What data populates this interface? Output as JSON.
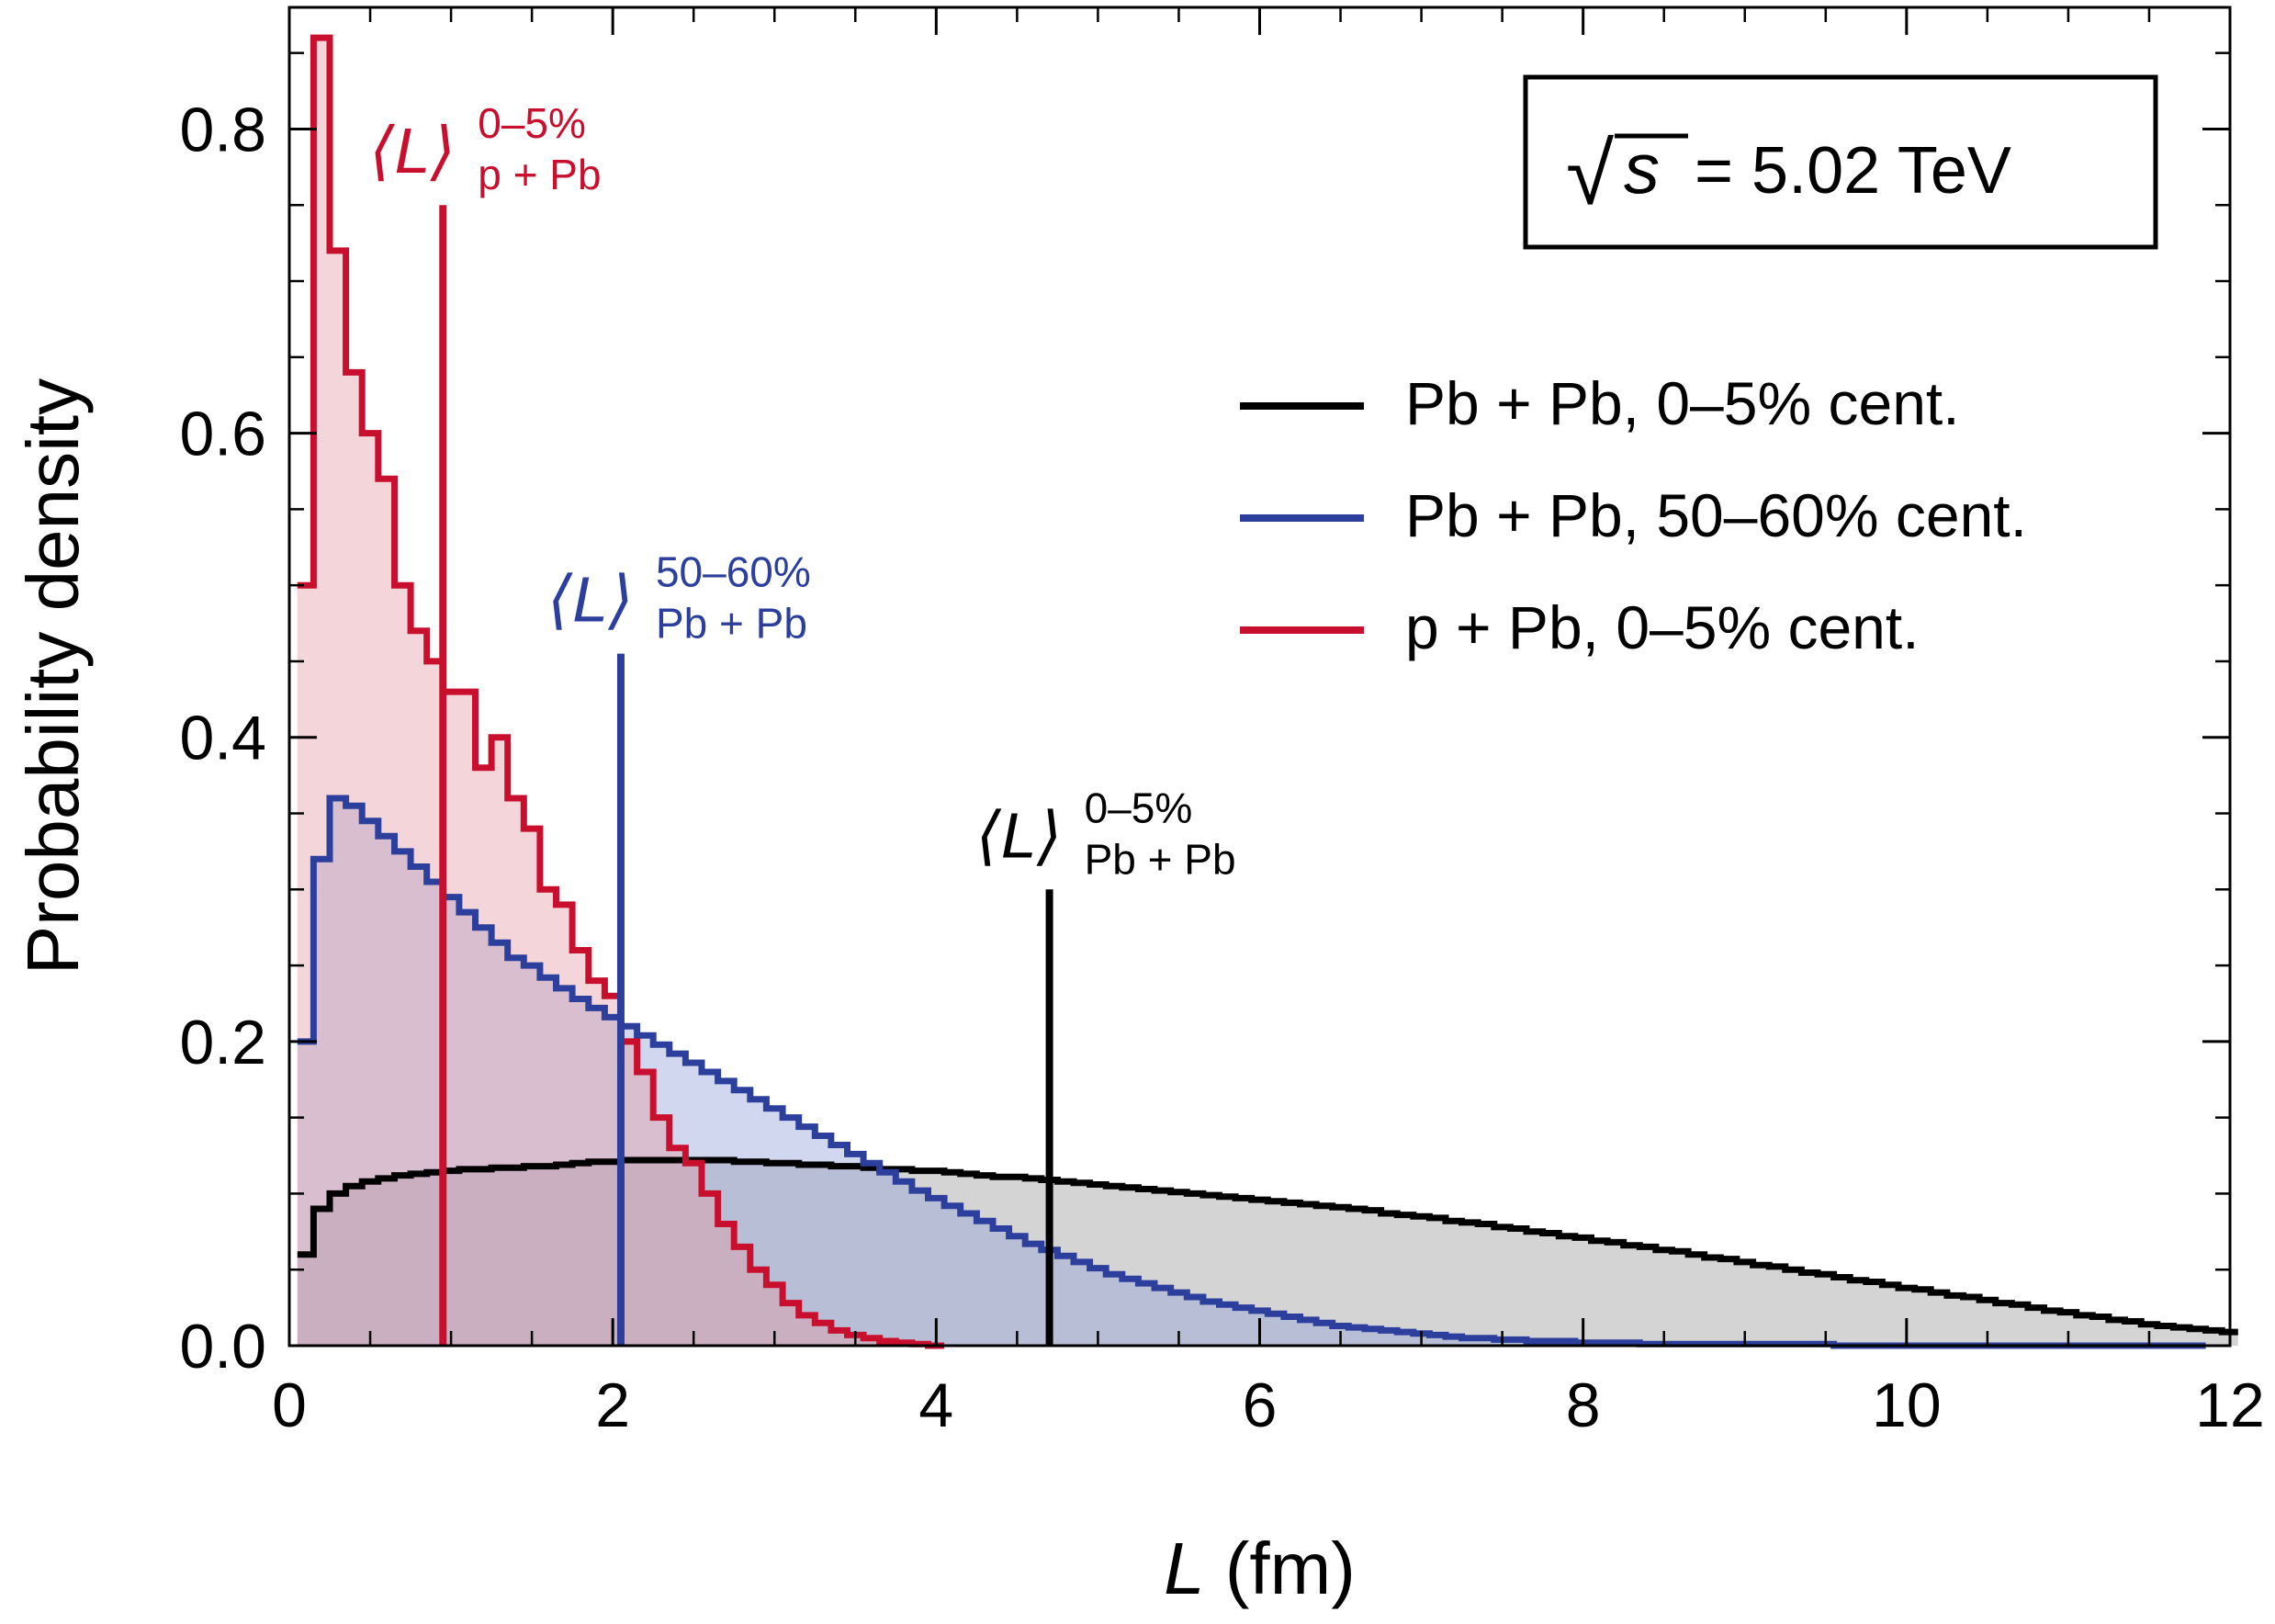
{
  "chart_data": {
    "type": "histogram",
    "title": "",
    "xlabel": "L (fm)",
    "xlabel_italic_part": "L",
    "xlabel_rest": " (fm)",
    "ylabel": "Probability density",
    "xlim": [
      0,
      12
    ],
    "ylim": [
      0,
      0.88
    ],
    "x_ticks": [
      0,
      2,
      4,
      6,
      8,
      10,
      12
    ],
    "x_tick_labels": [
      "0",
      "2",
      "4",
      "6",
      "8",
      "10",
      "12"
    ],
    "y_ticks": [
      0.0,
      0.2,
      0.4,
      0.6,
      0.8
    ],
    "y_tick_labels": [
      "0.0",
      "0.2",
      "0.4",
      "0.6",
      "0.8"
    ],
    "grid": false,
    "legend_position": "upper-right",
    "annotation_box": {
      "sqrt_symbol": "√",
      "variable": "s",
      "text": " = 5.02 TeV"
    },
    "series": [
      {
        "name": "Pb + Pb, 0–5% cent.",
        "color": "#000000",
        "fill": "#999999",
        "bin_start": 0.05,
        "bin_width": 0.1,
        "values": [
          0.06,
          0.09,
          0.1,
          0.105,
          0.108,
          0.11,
          0.112,
          0.113,
          0.114,
          0.115,
          0.116,
          0.116,
          0.117,
          0.117,
          0.118,
          0.118,
          0.119,
          0.12,
          0.121,
          0.121,
          0.122,
          0.122,
          0.122,
          0.122,
          0.122,
          0.122,
          0.122,
          0.121,
          0.121,
          0.12,
          0.12,
          0.119,
          0.119,
          0.118,
          0.118,
          0.117,
          0.116,
          0.116,
          0.115,
          0.115,
          0.114,
          0.113,
          0.112,
          0.111,
          0.111,
          0.11,
          0.109,
          0.108,
          0.107,
          0.106,
          0.105,
          0.104,
          0.103,
          0.102,
          0.101,
          0.1,
          0.099,
          0.098,
          0.097,
          0.096,
          0.095,
          0.094,
          0.093,
          0.092,
          0.091,
          0.09,
          0.089,
          0.087,
          0.086,
          0.085,
          0.084,
          0.082,
          0.081,
          0.08,
          0.078,
          0.077,
          0.075,
          0.074,
          0.072,
          0.071,
          0.069,
          0.068,
          0.066,
          0.065,
          0.063,
          0.062,
          0.06,
          0.058,
          0.057,
          0.055,
          0.053,
          0.052,
          0.05,
          0.048,
          0.047,
          0.045,
          0.043,
          0.042,
          0.04,
          0.038,
          0.037,
          0.035,
          0.033,
          0.032,
          0.03,
          0.028,
          0.027,
          0.025,
          0.023,
          0.022,
          0.02,
          0.019,
          0.017,
          0.016,
          0.014,
          0.013,
          0.012,
          0.011,
          0.01,
          0.009
        ]
      },
      {
        "name": "Pb + Pb, 50–60% cent.",
        "color": "#2c3f9c",
        "fill": "#8f9fd6",
        "bin_start": 0.05,
        "bin_width": 0.1,
        "values": [
          0.2,
          0.32,
          0.36,
          0.355,
          0.345,
          0.335,
          0.325,
          0.315,
          0.305,
          0.295,
          0.285,
          0.275,
          0.265,
          0.255,
          0.25,
          0.242,
          0.235,
          0.228,
          0.222,
          0.216,
          0.21,
          0.204,
          0.198,
          0.192,
          0.186,
          0.18,
          0.174,
          0.168,
          0.162,
          0.156,
          0.15,
          0.144,
          0.138,
          0.132,
          0.126,
          0.12,
          0.114,
          0.108,
          0.102,
          0.097,
          0.092,
          0.087,
          0.082,
          0.077,
          0.072,
          0.067,
          0.063,
          0.059,
          0.055,
          0.051,
          0.047,
          0.044,
          0.041,
          0.038,
          0.035,
          0.032,
          0.029,
          0.027,
          0.025,
          0.023,
          0.021,
          0.019,
          0.017,
          0.015,
          0.013,
          0.012,
          0.011,
          0.01,
          0.009,
          0.008,
          0.007,
          0.006,
          0.005,
          0.005,
          0.004,
          0.004,
          0.003,
          0.003,
          0.003,
          0.002,
          0.002,
          0.002,
          0.002,
          0.001,
          0.001,
          0.001,
          0.001,
          0.001,
          0.001,
          0.001,
          0.001,
          0.001,
          0.001,
          0.001,
          0.001,
          0.0,
          0.0,
          0.0,
          0.0,
          0.0,
          0.0,
          0.0,
          0.0,
          0.0,
          0.0,
          0.0,
          0.0,
          0.0,
          0.0,
          0.0,
          0.0,
          0.0,
          0.0,
          0.0,
          0.0,
          0.0,
          0.0,
          0.0
        ]
      },
      {
        "name": "p + Pb, 0–5% cent.",
        "color": "#c8102e",
        "fill": "#e49aa8",
        "bin_start": 0.05,
        "bin_width": 0.1,
        "values": [
          0.5,
          0.86,
          0.72,
          0.64,
          0.6,
          0.57,
          0.5,
          0.47,
          0.45,
          0.43,
          0.43,
          0.38,
          0.4,
          0.36,
          0.34,
          0.3,
          0.29,
          0.26,
          0.24,
          0.23,
          0.2,
          0.18,
          0.15,
          0.13,
          0.12,
          0.1,
          0.08,
          0.065,
          0.05,
          0.04,
          0.028,
          0.02,
          0.015,
          0.01,
          0.007,
          0.005,
          0.003,
          0.002,
          0.001,
          0.0
        ]
      }
    ],
    "mean_markers": [
      {
        "x": 0.95,
        "height": 0.75,
        "color": "#c8102e",
        "label_base": "⟨L⟩",
        "label_sup": "0–5%",
        "label_sub": "p + Pb"
      },
      {
        "x": 2.05,
        "height": 0.455,
        "color": "#2c3f9c",
        "label_base": "⟨L⟩",
        "label_sup": "50–60%",
        "label_sub": "Pb + Pb"
      },
      {
        "x": 4.7,
        "height": 0.3,
        "color": "#000000",
        "label_base": "⟨L⟩",
        "label_sup": "0–5%",
        "label_sub": "Pb + Pb"
      }
    ]
  }
}
